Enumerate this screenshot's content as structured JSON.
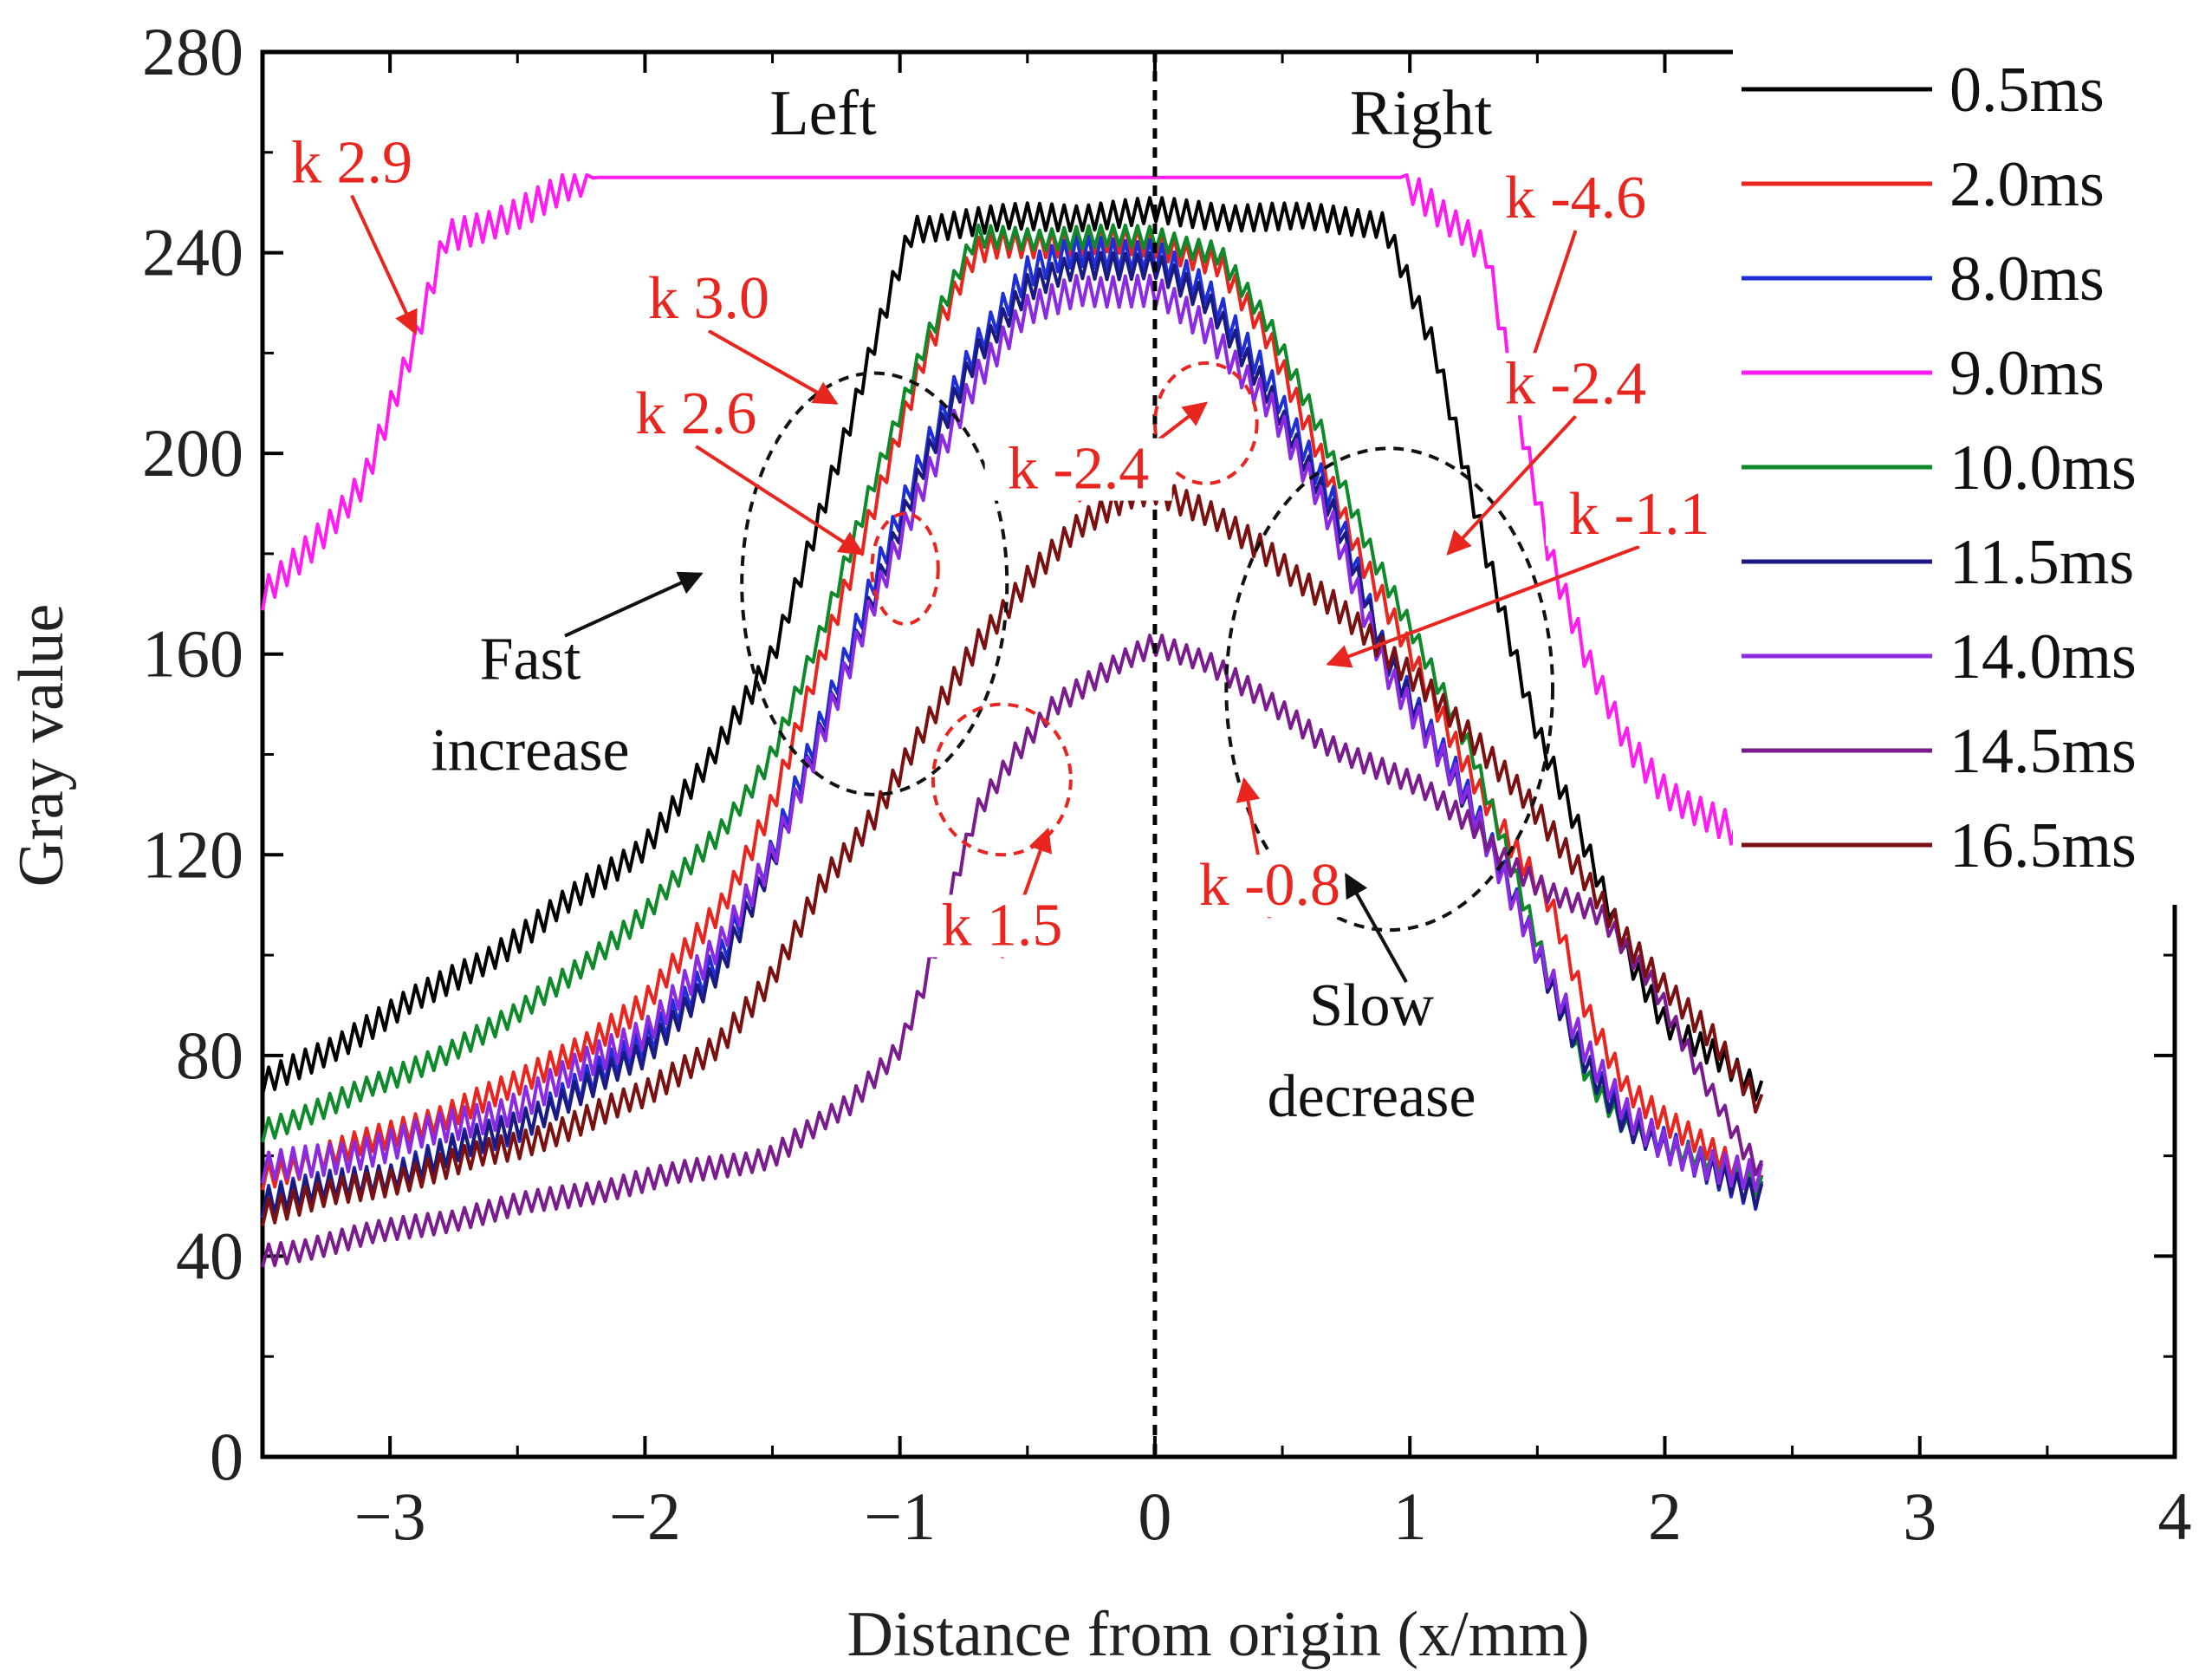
{
  "chart_data": {
    "type": "line",
    "title": "",
    "xlabel": "Distance from origin (x/mm)",
    "ylabel": "Gray value",
    "xlim": [
      -3.5,
      4
    ],
    "ylim": [
      0,
      280
    ],
    "xticks": [
      -3,
      -2,
      -1,
      0,
      1,
      2,
      3,
      4
    ],
    "yticks": [
      0,
      40,
      80,
      120,
      160,
      200,
      240,
      280
    ],
    "xtick_labels": [
      "−3",
      "−2",
      "−1",
      "0",
      "1",
      "2",
      "3",
      "4"
    ],
    "ytick_labels": [
      "0",
      "40",
      "80",
      "120",
      "160",
      "200",
      "240",
      "280"
    ],
    "vline_x": 0,
    "legend_position": "top-right",
    "side_labels": [
      "Left",
      "Right"
    ],
    "series": [
      {
        "name": "0.5ms",
        "color": "#000000",
        "noise": 3.0,
        "points": [
          [
            -3.5,
            74
          ],
          [
            -3,
            88
          ],
          [
            -2.5,
            103
          ],
          [
            -2,
            122
          ],
          [
            -1.75,
            138
          ],
          [
            -1.5,
            160
          ],
          [
            -1.35,
            182
          ],
          [
            -1.2,
            205
          ],
          [
            -1.1,
            222
          ],
          [
            -1.0,
            238
          ],
          [
            -0.95,
            245
          ],
          [
            -0.5,
            247
          ],
          [
            0,
            248
          ],
          [
            0.5,
            247
          ],
          [
            0.9,
            246
          ],
          [
            0.95,
            240
          ],
          [
            1.1,
            220
          ],
          [
            1.2,
            200
          ],
          [
            1.3,
            180
          ],
          [
            1.4,
            162
          ],
          [
            1.5,
            145
          ],
          [
            1.7,
            120
          ],
          [
            1.85,
            100
          ],
          [
            2.0,
            87
          ],
          [
            2.2,
            80
          ],
          [
            2.38,
            72
          ]
        ]
      },
      {
        "name": "2.0ms",
        "color": "#e8261f",
        "noise": 3.0,
        "points": [
          [
            -3.5,
            56
          ],
          [
            -3,
            64
          ],
          [
            -2.5,
            74
          ],
          [
            -2,
            90
          ],
          [
            -1.7,
            110
          ],
          [
            -1.5,
            130
          ],
          [
            -1.3,
            160
          ],
          [
            -1.1,
            190
          ],
          [
            -0.9,
            220
          ],
          [
            -0.7,
            240
          ],
          [
            -0.6,
            242
          ],
          [
            0,
            242
          ],
          [
            0.25,
            238
          ],
          [
            0.45,
            222
          ],
          [
            0.65,
            200
          ],
          [
            0.8,
            180
          ],
          [
            1.0,
            160
          ],
          [
            1.2,
            140
          ],
          [
            1.4,
            122
          ],
          [
            1.55,
            110
          ],
          [
            1.7,
            88
          ],
          [
            1.85,
            74
          ],
          [
            2.0,
            67
          ],
          [
            2.2,
            60
          ],
          [
            2.38,
            54
          ]
        ]
      },
      {
        "name": "8.0ms",
        "color": "#1f2fd8",
        "noise": 3.5,
        "points": [
          [
            -3.5,
            51
          ],
          [
            -3,
            56
          ],
          [
            -2.5,
            66
          ],
          [
            -2,
            82
          ],
          [
            -1.7,
            100
          ],
          [
            -1.5,
            120
          ],
          [
            -1.3,
            148
          ],
          [
            -1.1,
            175
          ],
          [
            -0.9,
            200
          ],
          [
            -0.7,
            222
          ],
          [
            -0.5,
            236
          ],
          [
            -0.3,
            240
          ],
          [
            0,
            240
          ],
          [
            0.2,
            232
          ],
          [
            0.45,
            215
          ],
          [
            0.7,
            190
          ],
          [
            0.9,
            160
          ],
          [
            1.2,
            135
          ],
          [
            1.4,
            112
          ],
          [
            1.55,
            95
          ],
          [
            1.7,
            78
          ],
          [
            1.85,
            67
          ],
          [
            2.0,
            62
          ],
          [
            2.2,
            57
          ],
          [
            2.38,
            52
          ]
        ]
      },
      {
        "name": "9.0ms",
        "color": "#ff1cf0",
        "noise": 3.5,
        "points": [
          [
            -3.5,
            171
          ],
          [
            -3.3,
            182
          ],
          [
            -3.1,
            195
          ],
          [
            -2.9,
            222
          ],
          [
            -2.78,
            243
          ],
          [
            -2.5,
            248
          ],
          [
            -2.2,
            255
          ],
          [
            -1.5,
            255
          ],
          [
            0,
            255
          ],
          [
            0.97,
            255
          ],
          [
            1.15,
            246
          ],
          [
            1.3,
            240
          ],
          [
            1.42,
            210
          ],
          [
            1.55,
            180
          ],
          [
            1.7,
            158
          ],
          [
            1.85,
            142
          ],
          [
            2.0,
            133
          ],
          [
            2.2,
            127
          ],
          [
            2.38,
            121
          ]
        ]
      },
      {
        "name": "10.0ms",
        "color": "#0f8a2a",
        "noise": 2.5,
        "points": [
          [
            -3.5,
            65
          ],
          [
            -3,
            75
          ],
          [
            -2.5,
            88
          ],
          [
            -2,
            108
          ],
          [
            -1.7,
            125
          ],
          [
            -1.5,
            140
          ],
          [
            -1.3,
            165
          ],
          [
            -1.1,
            195
          ],
          [
            -0.9,
            222
          ],
          [
            -0.75,
            238
          ],
          [
            -0.7,
            243
          ],
          [
            0,
            243
          ],
          [
            0.25,
            240
          ],
          [
            0.45,
            225
          ],
          [
            0.65,
            205
          ],
          [
            0.85,
            180
          ],
          [
            1.05,
            160
          ],
          [
            1.25,
            140
          ],
          [
            1.4,
            118
          ],
          [
            1.55,
            95
          ],
          [
            1.7,
            75
          ],
          [
            1.85,
            66
          ],
          [
            2.0,
            62
          ],
          [
            2.2,
            58
          ],
          [
            2.38,
            54
          ]
        ]
      },
      {
        "name": "11.5ms",
        "color": "#1a1a80",
        "noise": 3.0,
        "points": [
          [
            -3.5,
            51
          ],
          [
            -3,
            56
          ],
          [
            -2.5,
            66
          ],
          [
            -2,
            80
          ],
          [
            -1.7,
            98
          ],
          [
            -1.5,
            118
          ],
          [
            -1.3,
            146
          ],
          [
            -1.1,
            172
          ],
          [
            -0.9,
            198
          ],
          [
            -0.7,
            220
          ],
          [
            -0.5,
            233
          ],
          [
            -0.3,
            237
          ],
          [
            0,
            238
          ],
          [
            0.2,
            230
          ],
          [
            0.45,
            212
          ],
          [
            0.7,
            188
          ],
          [
            0.9,
            160
          ],
          [
            1.2,
            133
          ],
          [
            1.4,
            112
          ],
          [
            1.55,
            94
          ],
          [
            1.7,
            78
          ],
          [
            1.85,
            66
          ],
          [
            2.0,
            61
          ],
          [
            2.2,
            57
          ],
          [
            2.38,
            52
          ]
        ]
      },
      {
        "name": "14.0ms",
        "color": "#8a2be2",
        "noise": 3.5,
        "points": [
          [
            -3.5,
            57
          ],
          [
            -3,
            62
          ],
          [
            -2.5,
            70
          ],
          [
            -2,
            85
          ],
          [
            -1.7,
            102
          ],
          [
            -1.5,
            120
          ],
          [
            -1.3,
            145
          ],
          [
            -1.1,
            170
          ],
          [
            -0.9,
            195
          ],
          [
            -0.7,
            215
          ],
          [
            -0.5,
            228
          ],
          [
            -0.3,
            233
          ],
          [
            0,
            232
          ],
          [
            0.2,
            225
          ],
          [
            0.45,
            210
          ],
          [
            0.7,
            185
          ],
          [
            0.9,
            158
          ],
          [
            1.2,
            133
          ],
          [
            1.4,
            112
          ],
          [
            1.55,
            96
          ],
          [
            1.7,
            80
          ],
          [
            1.85,
            68
          ],
          [
            2.0,
            62
          ],
          [
            2.2,
            58
          ],
          [
            2.38,
            55
          ]
        ]
      },
      {
        "name": "14.5ms",
        "color": "#7a1b8e",
        "noise": 2.5,
        "points": [
          [
            -3.5,
            40
          ],
          [
            -3,
            45
          ],
          [
            -2.5,
            50
          ],
          [
            -2,
            55
          ],
          [
            -1.5,
            60
          ],
          [
            -1.2,
            70
          ],
          [
            -1.0,
            82
          ],
          [
            -0.9,
            95
          ],
          [
            -0.8,
            112
          ],
          [
            -0.7,
            128
          ],
          [
            -0.55,
            140
          ],
          [
            -0.4,
            150
          ],
          [
            -0.2,
            156
          ],
          [
            0,
            162
          ],
          [
            0.2,
            159
          ],
          [
            0.45,
            150
          ],
          [
            0.65,
            143
          ],
          [
            0.85,
            138
          ],
          [
            1.05,
            133
          ],
          [
            1.25,
            126
          ],
          [
            1.4,
            118
          ],
          [
            1.55,
            112
          ],
          [
            1.75,
            108
          ],
          [
            1.95,
            95
          ],
          [
            2.15,
            75
          ],
          [
            2.3,
            62
          ],
          [
            2.38,
            57
          ]
        ]
      },
      {
        "name": "16.5ms",
        "color": "#7a1010",
        "noise": 3.0,
        "points": [
          [
            -3.5,
            49
          ],
          [
            -3,
            55
          ],
          [
            -2.5,
            62
          ],
          [
            -2,
            72
          ],
          [
            -1.7,
            83
          ],
          [
            -1.5,
            95
          ],
          [
            -1.3,
            115
          ],
          [
            -1.1,
            128
          ],
          [
            -0.9,
            145
          ],
          [
            -0.7,
            162
          ],
          [
            -0.5,
            175
          ],
          [
            -0.3,
            185
          ],
          [
            -0.1,
            192
          ],
          [
            0,
            193
          ],
          [
            0.2,
            188
          ],
          [
            0.45,
            180
          ],
          [
            0.7,
            170
          ],
          [
            0.9,
            160
          ],
          [
            1.1,
            152
          ],
          [
            1.3,
            140
          ],
          [
            1.5,
            128
          ],
          [
            1.7,
            115
          ],
          [
            1.85,
            103
          ],
          [
            2.0,
            93
          ],
          [
            2.2,
            83
          ],
          [
            2.38,
            70
          ]
        ]
      }
    ],
    "annotations": [
      {
        "text": "k 2.9",
        "color": "#e8261f",
        "label_at": [
          -3.15,
          254
        ],
        "arrow_to": [
          -2.9,
          224
        ]
      },
      {
        "text": "k 3.0",
        "color": "#e8261f",
        "label_at": [
          -1.75,
          227
        ],
        "arrow_to": [
          -1.25,
          210
        ]
      },
      {
        "text": "k 2.6",
        "color": "#e8261f",
        "label_at": [
          -1.8,
          204
        ],
        "arrow_to": [
          -1.15,
          180
        ]
      },
      {
        "text": "k -2.4",
        "color": "#e8261f",
        "label_at": [
          -0.3,
          193
        ],
        "arrow_to": [
          0.2,
          210
        ]
      },
      {
        "text": "k -4.6",
        "color": "#e8261f",
        "label_at": [
          1.65,
          247
        ],
        "arrow_to": [
          1.45,
          214
        ]
      },
      {
        "text": "k -2.4",
        "color": "#e8261f",
        "label_at": [
          1.65,
          210
        ],
        "arrow_to": [
          1.15,
          180
        ]
      },
      {
        "text": "k -1.1",
        "color": "#e8261f",
        "label_at": [
          1.9,
          184
        ],
        "arrow_to": [
          0.68,
          158
        ]
      },
      {
        "text": "k 1.5",
        "color": "#e8261f",
        "label_at": [
          -0.6,
          102
        ],
        "arrow_to": [
          -0.42,
          125
        ]
      },
      {
        "text": "k -0.8",
        "color": "#e8261f",
        "label_at": [
          0.45,
          110
        ],
        "arrow_to": [
          0.35,
          135
        ]
      }
    ],
    "regions": [
      {
        "lines": [
          "Fast",
          "increase"
        ],
        "color": "#111111",
        "label_at": [
          -2.45,
          155
        ],
        "arrow_to": [
          -1.78,
          176
        ]
      },
      {
        "lines": [
          "Slow",
          "decrease"
        ],
        "color": "#111111",
        "label_at": [
          0.85,
          86
        ],
        "arrow_to": [
          0.75,
          116
        ]
      }
    ],
    "circles": [
      {
        "cx": -1.1,
        "cy": 174,
        "rx": 0.52,
        "ry": 42,
        "color": "#111111"
      },
      {
        "cx": -0.98,
        "cy": 177,
        "rx": 0.13,
        "ry": 11,
        "color": "#e8261f"
      },
      {
        "cx": 0.2,
        "cy": 206,
        "rx": 0.2,
        "ry": 12,
        "color": "#e8261f"
      },
      {
        "cx": -0.6,
        "cy": 135,
        "rx": 0.27,
        "ry": 15,
        "color": "#e8261f"
      },
      {
        "cx": 0.92,
        "cy": 153,
        "rx": 0.64,
        "ry": 48,
        "color": "#111111"
      }
    ]
  }
}
